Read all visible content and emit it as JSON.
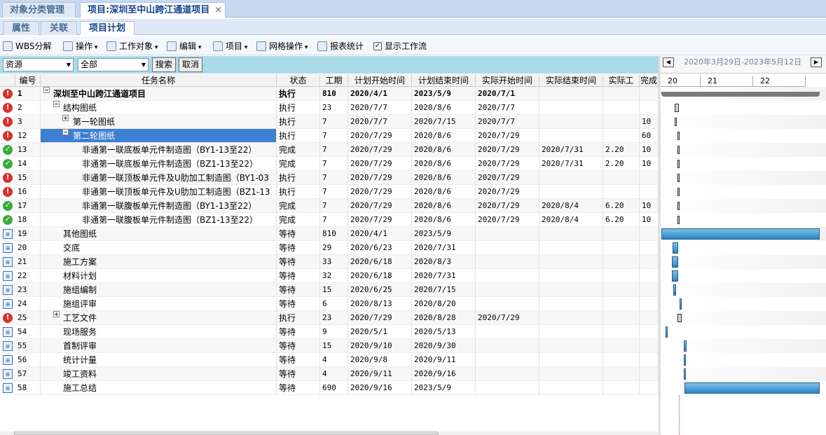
{
  "tabs": [
    "对象分类管理",
    "项目:深圳至中山跨江通道项目"
  ],
  "subtabs": [
    "属性",
    "关联",
    "项目计划"
  ],
  "toolbar": [
    "WBS分解",
    "操作",
    "工作对象",
    "编辑",
    "项目",
    "网格操作",
    "报表统计",
    "显示工作流"
  ],
  "filter": {
    "field": "资源",
    "scope": "全部",
    "search": "搜索",
    "cancel": "取消"
  },
  "gantt": {
    "range": "2020年3月29日-2023年5月12日",
    "years": [
      "20",
      "21",
      "22"
    ],
    "start": "2020/3/29"
  },
  "columns": [
    "编号",
    "任务名称",
    "状态",
    "工期",
    "计划开始时间",
    "计划结束时间",
    "实际开始时间",
    "实际结束时间",
    "实际工",
    "完成"
  ],
  "rows": [
    {
      "id": "1",
      "name": "深圳至中山跨江通道项目",
      "status": "执行",
      "dur": "810",
      "ps": "2020/4/1",
      "pe": "2023/5/9",
      "as": "2020/7/1",
      "level": 0,
      "toggle": "open",
      "bold": true
    },
    {
      "id": "2",
      "name": "结构图纸",
      "status": "执行",
      "dur": "23",
      "ps": "2020/7/7",
      "pe": "2020/8/6",
      "as": "2020/7/7",
      "level": 1,
      "toggle": "open"
    },
    {
      "id": "3",
      "name": "第一轮图纸",
      "status": "执行",
      "dur": "7",
      "ps": "2020/7/7",
      "pe": "2020/7/15",
      "as": "2020/7/7",
      "done": "10",
      "level": 2,
      "toggle": "closed"
    },
    {
      "id": "12",
      "name": "第二轮图纸",
      "status": "执行",
      "dur": "7",
      "ps": "2020/7/29",
      "pe": "2020/8/6",
      "as": "2020/7/29",
      "done": "60",
      "level": 2,
      "toggle": "open",
      "selected": true
    },
    {
      "id": "13",
      "name": "非通第一联底板单元件制造图（BY1-13至22）",
      "status": "完成",
      "dur": "7",
      "ps": "2020/7/29",
      "pe": "2020/8/6",
      "as": "2020/7/29",
      "ae": "2020/7/31",
      "aw": "2.20",
      "done": "10",
      "level": 3
    },
    {
      "id": "14",
      "name": "非通第一联底板单元件制造图（BZ1-13至22）",
      "status": "完成",
      "dur": "7",
      "ps": "2020/7/29",
      "pe": "2020/8/6",
      "as": "2020/7/29",
      "ae": "2020/7/31",
      "aw": "2.20",
      "done": "10",
      "level": 3
    },
    {
      "id": "15",
      "name": "非通第一联顶板单元件及U肋加工制造图（BY1-03",
      "status": "执行",
      "dur": "7",
      "ps": "2020/7/29",
      "pe": "2020/8/6",
      "as": "2020/7/29",
      "level": 3
    },
    {
      "id": "16",
      "name": "非通第一联顶板单元件及U肋加工制造图（BZ1-13",
      "status": "执行",
      "dur": "7",
      "ps": "2020/7/29",
      "pe": "2020/8/6",
      "as": "2020/7/29",
      "level": 3
    },
    {
      "id": "17",
      "name": "非通第一联腹板单元件制造图（BY1-13至22）",
      "status": "完成",
      "dur": "7",
      "ps": "2020/7/29",
      "pe": "2020/8/6",
      "as": "2020/7/29",
      "ae": "2020/8/4",
      "aw": "6.20",
      "done": "10",
      "level": 3
    },
    {
      "id": "18",
      "name": "非通第一联腹板单元件制造图（BZ1-13至22）",
      "status": "完成",
      "dur": "7",
      "ps": "2020/7/29",
      "pe": "2020/8/6",
      "as": "2020/7/29",
      "ae": "2020/8/4",
      "aw": "6.20",
      "done": "10",
      "level": 3
    },
    {
      "id": "19",
      "name": "其他图纸",
      "status": "等待",
      "dur": "810",
      "ps": "2020/4/1",
      "pe": "2023/5/9",
      "level": 1
    },
    {
      "id": "20",
      "name": "交底",
      "status": "等待",
      "dur": "29",
      "ps": "2020/6/23",
      "pe": "2020/7/31",
      "level": 1
    },
    {
      "id": "21",
      "name": "施工方案",
      "status": "等待",
      "dur": "33",
      "ps": "2020/6/18",
      "pe": "2020/8/3",
      "level": 1
    },
    {
      "id": "22",
      "name": "材料计划",
      "status": "等待",
      "dur": "32",
      "ps": "2020/6/18",
      "pe": "2020/7/31",
      "level": 1
    },
    {
      "id": "23",
      "name": "施组编制",
      "status": "等待",
      "dur": "15",
      "ps": "2020/6/25",
      "pe": "2020/7/15",
      "level": 1
    },
    {
      "id": "24",
      "name": "施组评审",
      "status": "等待",
      "dur": "6",
      "ps": "2020/8/13",
      "pe": "2020/8/20",
      "level": 1
    },
    {
      "id": "25",
      "name": "工艺文件",
      "status": "执行",
      "dur": "23",
      "ps": "2020/7/29",
      "pe": "2020/8/28",
      "as": "2020/7/29",
      "level": 1,
      "toggle": "closed"
    },
    {
      "id": "54",
      "name": "现场服务",
      "status": "等待",
      "dur": "9",
      "ps": "2020/5/1",
      "pe": "2020/5/13",
      "level": 1
    },
    {
      "id": "55",
      "name": "首制评审",
      "status": "等待",
      "dur": "15",
      "ps": "2020/9/10",
      "pe": "2020/9/30",
      "level": 1
    },
    {
      "id": "56",
      "name": "统计计量",
      "status": "等待",
      "dur": "4",
      "ps": "2020/9/8",
      "pe": "2020/9/11",
      "level": 1
    },
    {
      "id": "57",
      "name": "竣工资料",
      "status": "等待",
      "dur": "4",
      "ps": "2020/9/11",
      "pe": "2020/9/16",
      "level": 1
    },
    {
      "id": "58",
      "name": "施工总结",
      "status": "等待",
      "dur": "690",
      "ps": "2020/9/16",
      "pe": "2023/5/9",
      "level": 1
    }
  ]
}
